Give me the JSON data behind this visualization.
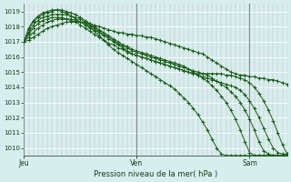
{
  "xlabel": "Pression niveau de la mer( hPa )",
  "ylim": [
    1009.5,
    1019.5
  ],
  "yticks": [
    1010,
    1011,
    1012,
    1013,
    1014,
    1015,
    1016,
    1017,
    1018,
    1019
  ],
  "bg_color": "#d6eeee",
  "grid_h_color": "#ffffff",
  "grid_v_color": "#d0b8b8",
  "day_v_color": "#888888",
  "line_color": "#1a5c1a",
  "day_labels": [
    "Jeu",
    "Ven",
    "Sam"
  ],
  "day_positions": [
    0,
    24,
    48
  ],
  "xlim": [
    0,
    56
  ],
  "series": [
    [
      1017.0,
      1017.1,
      1017.3,
      1017.5,
      1017.7,
      1017.9,
      1018.0,
      1018.1,
      1018.2,
      1018.3,
      1018.3,
      1018.3,
      1018.3,
      1018.3,
      1018.2,
      1018.1,
      1018.0,
      1017.9,
      1017.8,
      1017.7,
      1017.6,
      1017.6,
      1017.5,
      1017.5,
      1017.4,
      1017.4,
      1017.3,
      1017.3,
      1017.2,
      1017.1,
      1017.0,
      1016.9,
      1016.8,
      1016.7,
      1016.6,
      1016.5,
      1016.4,
      1016.3,
      1016.2,
      1016.0,
      1015.8,
      1015.6,
      1015.4,
      1015.2,
      1015.0,
      1014.9,
      1014.8,
      1014.8,
      1014.7,
      1014.7,
      1014.6,
      1014.6,
      1014.5,
      1014.5,
      1014.4,
      1014.3,
      1014.2
    ],
    [
      1017.0,
      1017.3,
      1017.6,
      1017.9,
      1018.1,
      1018.3,
      1018.4,
      1018.5,
      1018.5,
      1018.5,
      1018.5,
      1018.4,
      1018.3,
      1018.2,
      1018.0,
      1017.8,
      1017.6,
      1017.4,
      1017.2,
      1017.0,
      1016.8,
      1016.6,
      1016.4,
      1016.2,
      1016.1,
      1016.0,
      1015.9,
      1015.8,
      1015.7,
      1015.6,
      1015.5,
      1015.4,
      1015.3,
      1015.2,
      1015.1,
      1015.0,
      1014.9,
      1014.9,
      1014.9,
      1014.9,
      1014.9,
      1014.9,
      1014.9,
      1014.8,
      1014.8,
      1014.7,
      1014.6,
      1014.5,
      1014.3,
      1014.0,
      1013.6,
      1013.1,
      1012.5,
      1011.8,
      1011.0,
      1010.2,
      1009.6
    ],
    [
      1017.0,
      1017.5,
      1017.9,
      1018.2,
      1018.4,
      1018.5,
      1018.6,
      1018.6,
      1018.6,
      1018.5,
      1018.4,
      1018.3,
      1018.1,
      1017.9,
      1017.7,
      1017.5,
      1017.3,
      1017.1,
      1016.9,
      1016.8,
      1016.6,
      1016.5,
      1016.3,
      1016.2,
      1016.1,
      1016.0,
      1015.9,
      1015.8,
      1015.7,
      1015.6,
      1015.5,
      1015.4,
      1015.3,
      1015.2,
      1015.1,
      1015.0,
      1014.9,
      1014.8,
      1014.7,
      1014.6,
      1014.5,
      1014.4,
      1014.3,
      1014.2,
      1014.1,
      1014.0,
      1013.8,
      1013.5,
      1013.1,
      1012.6,
      1012.0,
      1011.3,
      1010.6,
      1010.0,
      1009.7,
      1009.6,
      1009.6
    ],
    [
      1017.0,
      1017.6,
      1018.1,
      1018.4,
      1018.6,
      1018.7,
      1018.8,
      1018.8,
      1018.8,
      1018.8,
      1018.7,
      1018.6,
      1018.5,
      1018.3,
      1018.1,
      1017.9,
      1017.7,
      1017.5,
      1017.3,
      1017.1,
      1016.9,
      1016.7,
      1016.6,
      1016.4,
      1016.3,
      1016.2,
      1016.1,
      1016.0,
      1015.9,
      1015.8,
      1015.7,
      1015.6,
      1015.5,
      1015.4,
      1015.3,
      1015.2,
      1015.1,
      1015.0,
      1014.9,
      1014.8,
      1014.6,
      1014.4,
      1014.2,
      1014.0,
      1013.7,
      1013.4,
      1013.0,
      1012.5,
      1011.9,
      1011.2,
      1010.4,
      1009.8,
      1009.6,
      1009.5,
      1009.5,
      1009.5,
      1009.5
    ],
    [
      1017.0,
      1017.8,
      1018.3,
      1018.6,
      1018.8,
      1018.9,
      1019.0,
      1019.1,
      1019.1,
      1019.0,
      1018.9,
      1018.8,
      1018.6,
      1018.4,
      1018.2,
      1018.0,
      1017.8,
      1017.6,
      1017.4,
      1017.2,
      1017.0,
      1016.8,
      1016.7,
      1016.5,
      1016.4,
      1016.3,
      1016.2,
      1016.1,
      1016.0,
      1015.9,
      1015.8,
      1015.7,
      1015.6,
      1015.5,
      1015.4,
      1015.2,
      1015.0,
      1014.8,
      1014.6,
      1014.4,
      1014.1,
      1013.8,
      1013.4,
      1013.0,
      1012.5,
      1011.9,
      1011.2,
      1010.4,
      1009.7,
      1009.5,
      1009.5,
      1009.5,
      1009.5,
      1009.5,
      1009.5,
      1009.5,
      1009.5
    ],
    [
      1017.0,
      1017.9,
      1018.4,
      1018.7,
      1018.9,
      1019.0,
      1019.1,
      1019.1,
      1019.0,
      1018.9,
      1018.7,
      1018.5,
      1018.3,
      1018.1,
      1017.9,
      1017.7,
      1017.4,
      1017.1,
      1016.8,
      1016.5,
      1016.3,
      1016.1,
      1015.9,
      1015.7,
      1015.5,
      1015.3,
      1015.1,
      1014.9,
      1014.7,
      1014.5,
      1014.3,
      1014.1,
      1013.9,
      1013.6,
      1013.3,
      1013.0,
      1012.6,
      1012.2,
      1011.7,
      1011.2,
      1010.6,
      1010.0,
      1009.6,
      1009.5,
      1009.5,
      1009.5,
      1009.5,
      1009.5,
      1009.5,
      1009.5,
      1009.5,
      1009.5,
      1009.5,
      1009.5,
      1009.5,
      1009.5,
      1009.5
    ]
  ]
}
